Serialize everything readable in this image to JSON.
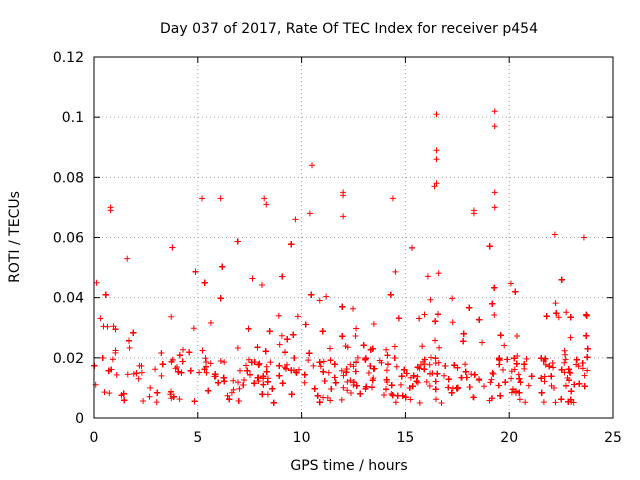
{
  "chart_data": {
    "type": "scatter",
    "title": "Day 037 of 2017, Rate Of TEC Index for receiver p454",
    "xlabel": "GPS time / hours",
    "ylabel": "ROTI / TECUs",
    "xlim": [
      0,
      25
    ],
    "ylim": [
      0,
      0.12
    ],
    "grid": true,
    "marker": "+",
    "series_color": "#ff0000",
    "x_ticks": [
      0,
      5,
      10,
      15,
      20,
      25
    ],
    "x_tick_labels": [
      "0",
      "5",
      "10",
      "15",
      "20",
      "25"
    ],
    "y_ticks": [
      0,
      0.02,
      0.04,
      0.06,
      0.08,
      0.1,
      0.12
    ],
    "y_tick_labels": [
      "0",
      "0.02",
      "0.04",
      "0.06",
      "0.08",
      "0.1",
      "0.12"
    ],
    "baseline_band": [
      0.005,
      0.02
    ],
    "time_range": [
      0,
      23.85
    ],
    "notable_points": [
      {
        "x": 0.8,
        "y": 0.07
      },
      {
        "x": 0.8,
        "y": 0.069
      },
      {
        "x": 1.6,
        "y": 0.053
      },
      {
        "x": 5.2,
        "y": 0.073
      },
      {
        "x": 6.1,
        "y": 0.073
      },
      {
        "x": 8.2,
        "y": 0.073
      },
      {
        "x": 8.3,
        "y": 0.071
      },
      {
        "x": 9.7,
        "y": 0.066
      },
      {
        "x": 10.5,
        "y": 0.084
      },
      {
        "x": 10.4,
        "y": 0.068
      },
      {
        "x": 12.0,
        "y": 0.075
      },
      {
        "x": 12.0,
        "y": 0.074
      },
      {
        "x": 12.0,
        "y": 0.067
      },
      {
        "x": 14.4,
        "y": 0.073
      },
      {
        "x": 16.5,
        "y": 0.101
      },
      {
        "x": 16.5,
        "y": 0.089
      },
      {
        "x": 16.5,
        "y": 0.086
      },
      {
        "x": 16.4,
        "y": 0.077
      },
      {
        "x": 16.5,
        "y": 0.078
      },
      {
        "x": 18.3,
        "y": 0.069
      },
      {
        "x": 18.3,
        "y": 0.068
      },
      {
        "x": 19.3,
        "y": 0.102
      },
      {
        "x": 19.3,
        "y": 0.097
      },
      {
        "x": 19.3,
        "y": 0.075
      },
      {
        "x": 19.3,
        "y": 0.07
      },
      {
        "x": 22.2,
        "y": 0.061
      },
      {
        "x": 23.6,
        "y": 0.06
      }
    ]
  }
}
